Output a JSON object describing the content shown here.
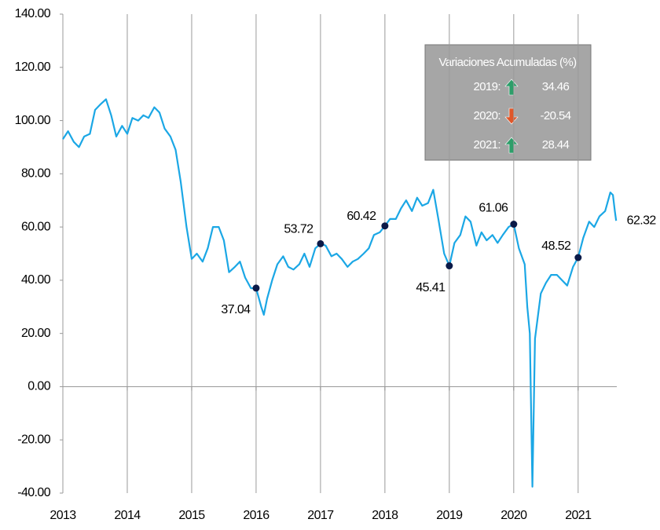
{
  "chart_data": {
    "type": "line",
    "x": [
      2013.0,
      2013.08,
      2013.17,
      2013.25,
      2013.33,
      2013.42,
      2013.5,
      2013.58,
      2013.67,
      2013.75,
      2013.83,
      2013.92,
      2014.0,
      2014.08,
      2014.17,
      2014.25,
      2014.33,
      2014.42,
      2014.5,
      2014.58,
      2014.67,
      2014.75,
      2014.83,
      2014.92,
      2015.0,
      2015.08,
      2015.17,
      2015.25,
      2015.33,
      2015.42,
      2015.5,
      2015.58,
      2015.67,
      2015.75,
      2015.83,
      2015.92,
      2016.0,
      2016.08,
      2016.12,
      2016.17,
      2016.25,
      2016.33,
      2016.42,
      2016.5,
      2016.58,
      2016.67,
      2016.75,
      2016.83,
      2016.92,
      2017.0,
      2017.08,
      2017.17,
      2017.25,
      2017.33,
      2017.42,
      2017.5,
      2017.58,
      2017.67,
      2017.75,
      2017.83,
      2017.92,
      2018.0,
      2018.08,
      2018.17,
      2018.25,
      2018.33,
      2018.42,
      2018.5,
      2018.58,
      2018.67,
      2018.75,
      2018.83,
      2018.92,
      2019.0,
      2019.08,
      2019.17,
      2019.25,
      2019.33,
      2019.42,
      2019.5,
      2019.58,
      2019.67,
      2019.75,
      2019.83,
      2019.92,
      2020.0,
      2020.08,
      2020.17,
      2020.21,
      2020.25,
      2020.29,
      2020.33,
      2020.42,
      2020.5,
      2020.58,
      2020.67,
      2020.75,
      2020.83,
      2020.92,
      2021.0,
      2021.08,
      2021.17,
      2021.25,
      2021.33,
      2021.42,
      2021.5,
      2021.54,
      2021.57,
      2021.59
    ],
    "series": [
      {
        "color": "#1ba7e5",
        "values": [
          93,
          96,
          92,
          90,
          94,
          95,
          104,
          106,
          108,
          102,
          94,
          98,
          95,
          101,
          100,
          102,
          101,
          105,
          103,
          97,
          94,
          89,
          77,
          60,
          48,
          50,
          47,
          52,
          60,
          60,
          55,
          43,
          45,
          47,
          41,
          37,
          37.04,
          30,
          27,
          33,
          40,
          46,
          49,
          45,
          44,
          46,
          50,
          45,
          52,
          53.72,
          53,
          49,
          50,
          48,
          45,
          47,
          48,
          50,
          52,
          57,
          58,
          60.42,
          63,
          63,
          67,
          70,
          66,
          71,
          68,
          69,
          74,
          63,
          50,
          45.41,
          54,
          57,
          64,
          62,
          53,
          58,
          55,
          57,
          54,
          57,
          60,
          61.06,
          52,
          46,
          30,
          20,
          -37.6,
          18,
          35,
          39,
          42,
          42,
          40,
          38,
          45,
          48.52,
          56,
          62,
          60,
          64,
          66,
          73,
          72,
          66,
          62.32
        ]
      }
    ],
    "annotations": [
      {
        "x": 2016,
        "value": 37.04,
        "marker": true
      },
      {
        "x": 2017,
        "value": 53.72,
        "marker": true
      },
      {
        "x": 2018,
        "value": 60.42,
        "marker": true
      },
      {
        "x": 2019,
        "value": 45.41,
        "marker": true
      },
      {
        "x": 2020,
        "value": 61.06,
        "marker": true
      },
      {
        "x": 2021,
        "value": 48.52,
        "marker": true
      },
      {
        "x": 2021.59,
        "value": 62.32,
        "marker": false
      }
    ],
    "marker_color": "#0b1a48",
    "xlim": [
      2013,
      2021.6
    ],
    "xticks": [
      2013,
      2014,
      2015,
      2016,
      2017,
      2018,
      2019,
      2020,
      2021
    ],
    "ylim": [
      -40,
      140
    ],
    "yticks": [
      {
        "value": -40,
        "label": "-40.00"
      },
      {
        "value": -20,
        "label": "-20.00"
      },
      {
        "value": 0,
        "label": "0.00"
      },
      {
        "value": 20,
        "label": "20.00"
      },
      {
        "value": 40,
        "label": "40.00"
      },
      {
        "value": 60,
        "label": "60.00"
      },
      {
        "value": 80,
        "label": "80.00"
      },
      {
        "value": 100,
        "label": "100.00"
      },
      {
        "value": 120,
        "label": "120.00"
      },
      {
        "value": 140,
        "label": "140.00"
      }
    ],
    "grid": true,
    "summary_box": {
      "title": "Variaciones Acumuladas (%)",
      "rows": [
        {
          "label": "2019:",
          "value": 34.46,
          "direction": "up"
        },
        {
          "label": "2020:",
          "value": -20.54,
          "direction": "down"
        },
        {
          "label": "2021:",
          "value": 28.44,
          "direction": "up"
        }
      ],
      "up_color": "#2e9e6a",
      "down_color": "#e0572a"
    }
  }
}
